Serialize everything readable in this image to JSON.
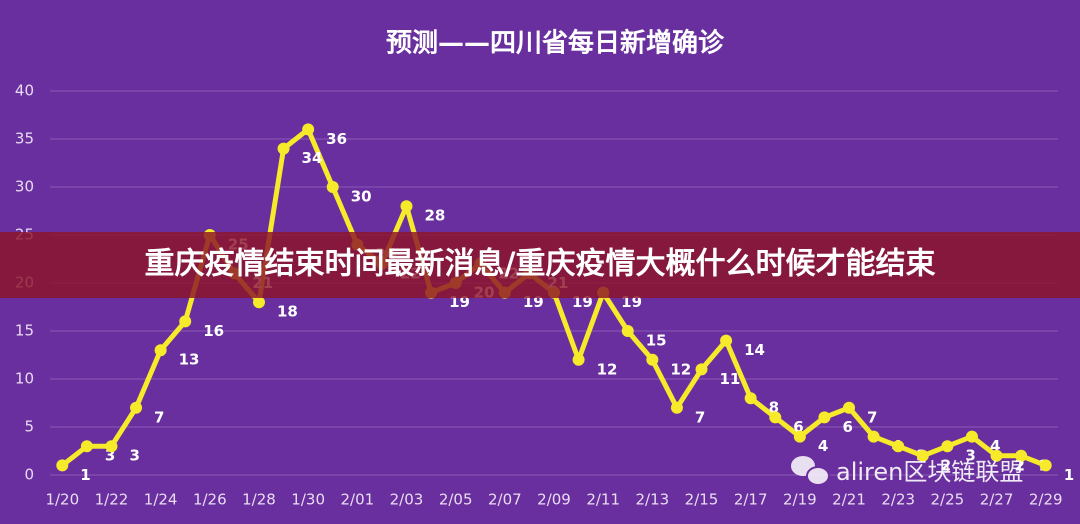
{
  "chart_data": {
    "type": "line",
    "title": "预测——四川省每日新增确诊",
    "categories": [
      "1/20",
      null,
      "1/22",
      null,
      "1/24",
      null,
      "1/26",
      null,
      "1/28",
      null,
      "1/30",
      null,
      "2/01",
      null,
      "2/03",
      null,
      "2/05",
      null,
      "2/07",
      null,
      "2/09",
      null,
      "2/11",
      null,
      "2/13",
      null,
      "2/15",
      null,
      "2/17",
      null,
      "2/19",
      null,
      "2/21",
      null,
      "2/23",
      null,
      "2/25",
      null,
      "2/27",
      null,
      "2/29"
    ],
    "series": [
      {
        "name": "四川省每日新增确诊",
        "color": "#f7ea2a",
        "values": [
          1,
          3,
          3,
          7,
          13,
          16,
          25,
          21,
          18,
          34,
          36,
          30,
          24,
          22,
          28,
          19,
          20,
          22,
          19,
          21,
          19,
          12,
          19,
          15,
          12,
          7,
          11,
          14,
          8,
          6,
          4,
          6,
          7,
          4,
          3,
          2,
          3,
          4,
          2,
          2,
          1
        ]
      }
    ],
    "ylim": [
      0,
      40
    ],
    "yticks": [
      0,
      5,
      10,
      15,
      20,
      25,
      30,
      35,
      40
    ],
    "grid": true,
    "background": "#6a2f9e"
  },
  "banner": {
    "text": "重庆疫情结束时间最新消息/重庆疫情大概什么时候才能结束"
  },
  "watermark": {
    "text": "aliren区块链联盟"
  }
}
